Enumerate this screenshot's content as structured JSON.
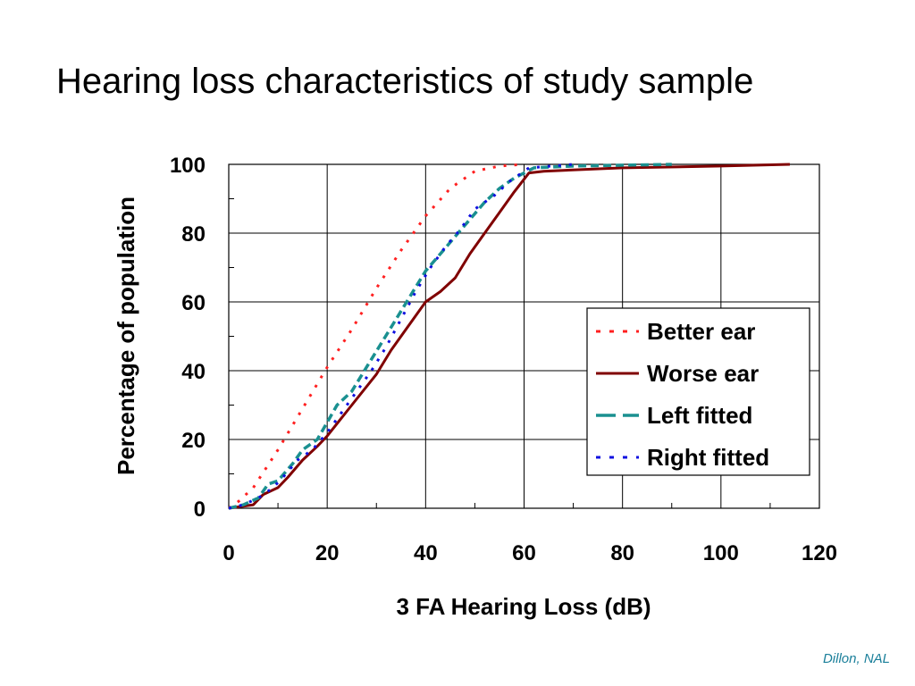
{
  "slide": {
    "title": "Hearing loss characteristics of study sample",
    "credit": "Dillon, NAL"
  },
  "chart_data": {
    "type": "line",
    "title": "",
    "xlabel": "3 FA Hearing Loss (dB)",
    "ylabel": "Percentage of population",
    "xlim": [
      0,
      120
    ],
    "ylim": [
      0,
      100
    ],
    "xticks": [
      "0",
      "20",
      "40",
      "60",
      "80",
      "100",
      "120"
    ],
    "yticks": [
      "0",
      "20",
      "40",
      "60",
      "80",
      "100"
    ],
    "grid": true,
    "legend_position": "right",
    "series": [
      {
        "name": "Better ear",
        "color": "#ff2020",
        "style": "dotted",
        "points": [
          [
            0,
            0
          ],
          [
            2,
            2
          ],
          [
            5,
            6
          ],
          [
            10,
            17
          ],
          [
            15,
            29
          ],
          [
            20,
            41
          ],
          [
            25,
            52
          ],
          [
            30,
            64
          ],
          [
            35,
            75
          ],
          [
            40,
            85
          ],
          [
            45,
            93
          ],
          [
            50,
            98
          ],
          [
            55,
            99.5
          ],
          [
            60,
            100
          ]
        ]
      },
      {
        "name": "Worse ear",
        "color": "#800000",
        "style": "solid",
        "points": [
          [
            0,
            0
          ],
          [
            5,
            1
          ],
          [
            7,
            4
          ],
          [
            10,
            6
          ],
          [
            12,
            9
          ],
          [
            15,
            14
          ],
          [
            18,
            18
          ],
          [
            20,
            21
          ],
          [
            25,
            30
          ],
          [
            30,
            39
          ],
          [
            33,
            46
          ],
          [
            36,
            52
          ],
          [
            40,
            60
          ],
          [
            43,
            63
          ],
          [
            46,
            67
          ],
          [
            49,
            74
          ],
          [
            52,
            80
          ],
          [
            55,
            86
          ],
          [
            58,
            92
          ],
          [
            61,
            97.5
          ],
          [
            64,
            98
          ],
          [
            80,
            99
          ],
          [
            100,
            99.5
          ],
          [
            114,
            100
          ]
        ]
      },
      {
        "name": "Left fitted",
        "color": "#1a9090",
        "style": "dashed",
        "points": [
          [
            0,
            0
          ],
          [
            3,
            1
          ],
          [
            6,
            3
          ],
          [
            8,
            7
          ],
          [
            10,
            8
          ],
          [
            13,
            13
          ],
          [
            15,
            17
          ],
          [
            18,
            20
          ],
          [
            20,
            25
          ],
          [
            22,
            30
          ],
          [
            25,
            34
          ],
          [
            28,
            41
          ],
          [
            31,
            48
          ],
          [
            34,
            55
          ],
          [
            37,
            62
          ],
          [
            40,
            69
          ],
          [
            43,
            74
          ],
          [
            46,
            79
          ],
          [
            49,
            84
          ],
          [
            52,
            89
          ],
          [
            55,
            93
          ],
          [
            58,
            96
          ],
          [
            62,
            99
          ],
          [
            70,
            99.5
          ],
          [
            90,
            100
          ]
        ]
      },
      {
        "name": "Right fitted",
        "color": "#1010e0",
        "style": "dotted",
        "points": [
          [
            0,
            0
          ],
          [
            3,
            1
          ],
          [
            6,
            3
          ],
          [
            9,
            6
          ],
          [
            11,
            9
          ],
          [
            14,
            14
          ],
          [
            17,
            17
          ],
          [
            20,
            22
          ],
          [
            23,
            28
          ],
          [
            26,
            34
          ],
          [
            29,
            40
          ],
          [
            32,
            47
          ],
          [
            35,
            55
          ],
          [
            38,
            63
          ],
          [
            41,
            70
          ],
          [
            44,
            76
          ],
          [
            47,
            81
          ],
          [
            50,
            87
          ],
          [
            54,
            91
          ],
          [
            57,
            95
          ],
          [
            61,
            99
          ],
          [
            70,
            100
          ]
        ]
      }
    ]
  }
}
